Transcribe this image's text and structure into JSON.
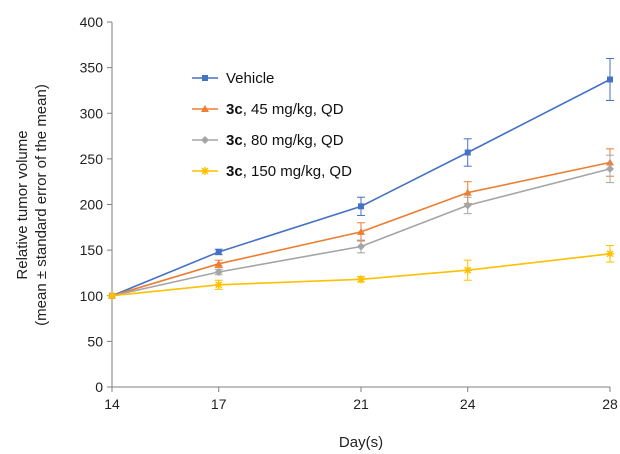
{
  "chart_data": {
    "type": "line",
    "xlabel": "Day(s)",
    "ylabel_line1": "Relative tumor volume",
    "ylabel_line2": "(mean ± standard error of the mean)",
    "x": [
      14,
      17,
      21,
      24,
      28
    ],
    "x_ticks": [
      "14",
      "17",
      "21",
      "24",
      "28"
    ],
    "ylim": [
      0,
      400
    ],
    "y_ticks": [
      0,
      50,
      100,
      150,
      200,
      250,
      300,
      350,
      400
    ],
    "grid": false,
    "legend_position": "upper-left",
    "series": [
      {
        "name_bold": "",
        "name_rest": "Vehicle",
        "color": "#4472C4",
        "marker": "square",
        "values": [
          100,
          148,
          198,
          257,
          337
        ],
        "errors": [
          0,
          3,
          10,
          15,
          23
        ]
      },
      {
        "name_bold": "3c",
        "name_rest": ", 45 mg/kg, QD",
        "color": "#ED7D31",
        "marker": "triangle",
        "values": [
          100,
          135,
          170,
          213,
          246
        ],
        "errors": [
          0,
          4,
          10,
          12,
          15
        ]
      },
      {
        "name_bold": "3c",
        "name_rest": ", 80 mg/kg, QD",
        "color": "#A5A5A5",
        "marker": "diamond",
        "values": [
          100,
          126,
          154,
          199,
          239
        ],
        "errors": [
          0,
          3,
          7,
          9,
          15
        ]
      },
      {
        "name_bold": "3c",
        "name_rest": ", 150 mg/kg, QD",
        "color": "#FFC000",
        "marker": "star",
        "values": [
          100,
          112,
          118,
          128,
          146
        ],
        "errors": [
          0,
          5,
          3,
          11,
          9
        ]
      }
    ]
  }
}
